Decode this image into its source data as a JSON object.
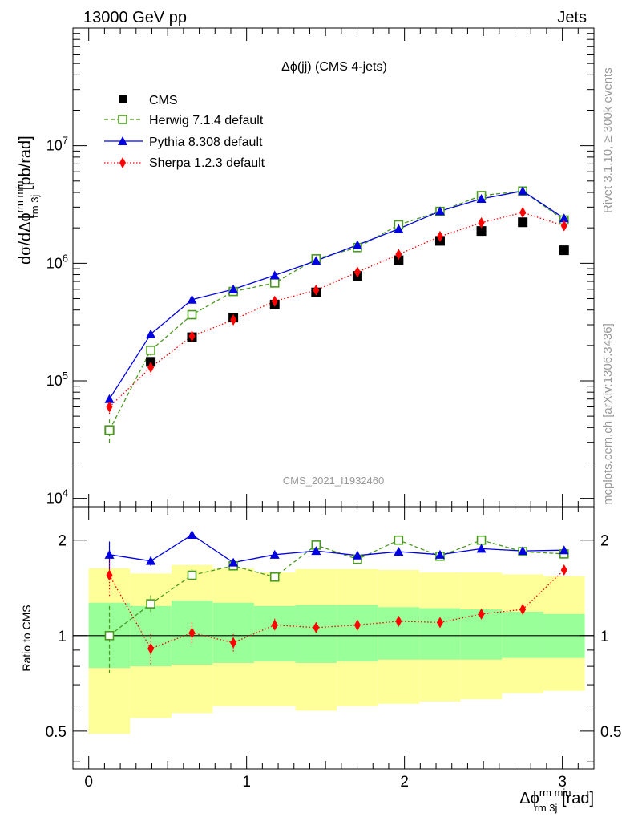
{
  "header": {
    "left": "13000 GeV pp",
    "right": "Jets"
  },
  "side": {
    "rivet": "Rivet 3.1.10, ≥ 300k events",
    "mcplots": "mcplots.cern.ch [arXiv:1306.3436]"
  },
  "colors": {
    "cms": "#000000",
    "herwig": "#4a9a1f",
    "pythia": "#0000e0",
    "sherpa": "#ff0000",
    "band_outer": "#ffff99",
    "band_inner": "#99ff99",
    "watermark": "#999999"
  },
  "chart_data": [
    {
      "type": "scatter",
      "title": "Δϕ(jj) (CMS 4-jets)",
      "watermark": "CMS_2021_I1932460",
      "ylabel": "dσ/dΔϕ rm min rm 3j [pb/rad]",
      "yscale": "log",
      "ylim": [
        8500,
        100000000.0
      ],
      "xlim": [
        -0.1,
        3.2
      ],
      "y_tick_labels": [
        "10^4",
        "10^5",
        "10^6",
        "10^7"
      ],
      "legend_position": "top-left",
      "x": [
        0.131,
        0.393,
        0.654,
        0.916,
        1.178,
        1.44,
        1.702,
        1.963,
        2.225,
        2.487,
        2.749,
        3.011
      ],
      "series": [
        {
          "name": "CMS",
          "marker": "square-filled",
          "values": [
            38000,
            145000,
            235000,
            345000,
            445000,
            565000,
            780000,
            1060000,
            1550000,
            1880000,
            2230000,
            1290000
          ]
        },
        {
          "name": "Herwig 7.1.4 default",
          "marker": "square-open",
          "line": "dashed",
          "values": [
            38000,
            182000,
            365000,
            575000,
            680000,
            1090000,
            1360000,
            2120000,
            2760000,
            3760000,
            4110000,
            2330000
          ],
          "errors": [
            9000,
            18000,
            20000,
            25000,
            30000,
            35000,
            40000,
            60000,
            80000,
            100000,
            110000,
            80000
          ]
        },
        {
          "name": "Pythia 8.308 default",
          "marker": "triangle-filled",
          "line": "solid",
          "values": [
            70000,
            250000,
            490000,
            600000,
            790000,
            1050000,
            1430000,
            1960000,
            2770000,
            3530000,
            4110000,
            2410000
          ],
          "errors": [
            6000,
            10000,
            15000,
            18000,
            20000,
            25000,
            30000,
            40000,
            50000,
            60000,
            70000,
            60000
          ]
        },
        {
          "name": "Sherpa 1.2.3 default",
          "marker": "diamond-filled",
          "line": "dotted",
          "values": [
            60000,
            130000,
            240000,
            330000,
            475000,
            590000,
            840000,
            1190000,
            1690000,
            2210000,
            2700000,
            2080000
          ],
          "errors": [
            9000,
            18000,
            25000,
            30000,
            35000,
            30000,
            40000,
            60000,
            80000,
            90000,
            80000,
            70000
          ]
        }
      ]
    },
    {
      "type": "scatter",
      "ylabel": "Ratio to CMS",
      "xlabel": "Δϕ rm min rm 3j [rad]",
      "yscale": "log",
      "ylim": [
        0.38,
        2.55
      ],
      "xlim": [
        -0.1,
        3.2
      ],
      "x_ticks": [
        0,
        1,
        2,
        3
      ],
      "y_ticks": [
        0.5,
        1,
        2
      ],
      "x": [
        0.131,
        0.393,
        0.654,
        0.916,
        1.178,
        1.44,
        1.702,
        1.963,
        2.225,
        2.487,
        2.749,
        3.011
      ],
      "bin_edges": [
        0.0,
        0.262,
        0.524,
        0.785,
        1.047,
        1.309,
        1.571,
        1.833,
        2.094,
        2.356,
        2.618,
        2.88,
        3.142
      ],
      "bands": {
        "outer_low": [
          0.49,
          0.55,
          0.57,
          0.6,
          0.6,
          0.58,
          0.6,
          0.61,
          0.62,
          0.63,
          0.66,
          0.67
        ],
        "outer_high": [
          1.63,
          1.57,
          1.67,
          1.63,
          1.58,
          1.62,
          1.62,
          1.61,
          1.58,
          1.58,
          1.56,
          1.54
        ],
        "inner_low": [
          0.79,
          0.8,
          0.81,
          0.82,
          0.83,
          0.82,
          0.83,
          0.84,
          0.84,
          0.84,
          0.85,
          0.85
        ],
        "inner_high": [
          1.27,
          1.24,
          1.29,
          1.27,
          1.24,
          1.25,
          1.25,
          1.23,
          1.22,
          1.21,
          1.19,
          1.17
        ]
      },
      "series": [
        {
          "name": "Herwig 7.1.4 default",
          "values": [
            1.0,
            1.26,
            1.55,
            1.66,
            1.53,
            1.93,
            1.74,
            2.0,
            1.78,
            2.0,
            1.84,
            1.81
          ],
          "errors": [
            0.24,
            0.08,
            0.07,
            0.05,
            0.05,
            0.04,
            0.04,
            0.03,
            0.03,
            0.03,
            0.03,
            0.03
          ]
        },
        {
          "name": "Pythia 8.308 default",
          "values": [
            1.8,
            1.72,
            2.08,
            1.7,
            1.8,
            1.85,
            1.79,
            1.84,
            1.8,
            1.88,
            1.85,
            1.86
          ],
          "errors": [
            0.18,
            0.06,
            0.06,
            0.04,
            0.03,
            0.03,
            0.03,
            0.03,
            0.03,
            0.03,
            0.03,
            0.03
          ]
        },
        {
          "name": "Sherpa 1.2.3 default",
          "values": [
            1.55,
            0.91,
            1.02,
            0.95,
            1.08,
            1.06,
            1.08,
            1.11,
            1.1,
            1.17,
            1.21,
            1.61
          ],
          "errors": [
            0.23,
            0.1,
            0.08,
            0.06,
            0.05,
            0.04,
            0.04,
            0.04,
            0.04,
            0.04,
            0.04,
            0.05
          ]
        }
      ]
    }
  ]
}
